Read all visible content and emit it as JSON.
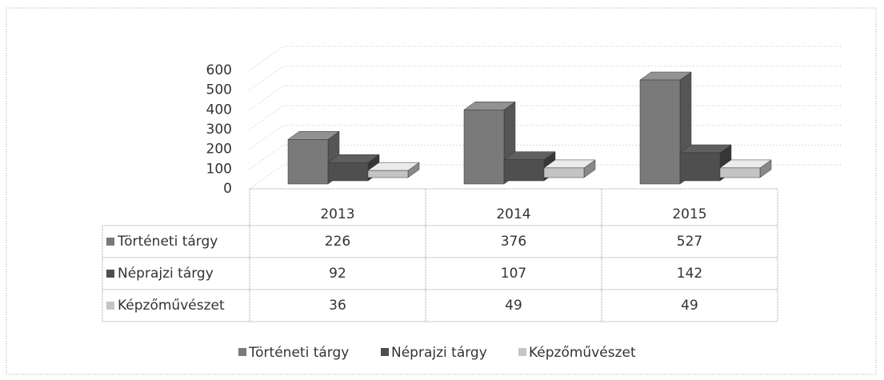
{
  "chart_data": {
    "type": "bar3d",
    "categories": [
      "2013",
      "2014",
      "2015"
    ],
    "series": [
      {
        "name": "Történeti tárgy",
        "color": "#7a7a7a",
        "values": [
          226,
          376,
          527
        ]
      },
      {
        "name": "Néprajzi tárgy",
        "color": "#4f4f4f",
        "values": [
          92,
          107,
          142
        ]
      },
      {
        "name": "Képzőművészet",
        "color": "#c4c4c4",
        "values": [
          36,
          49,
          49
        ]
      }
    ],
    "ylim": [
      0,
      600
    ],
    "yticks": [
      0,
      100,
      200,
      300,
      400,
      500,
      600
    ],
    "grid": true,
    "legend": "bottom",
    "data_table": true
  }
}
